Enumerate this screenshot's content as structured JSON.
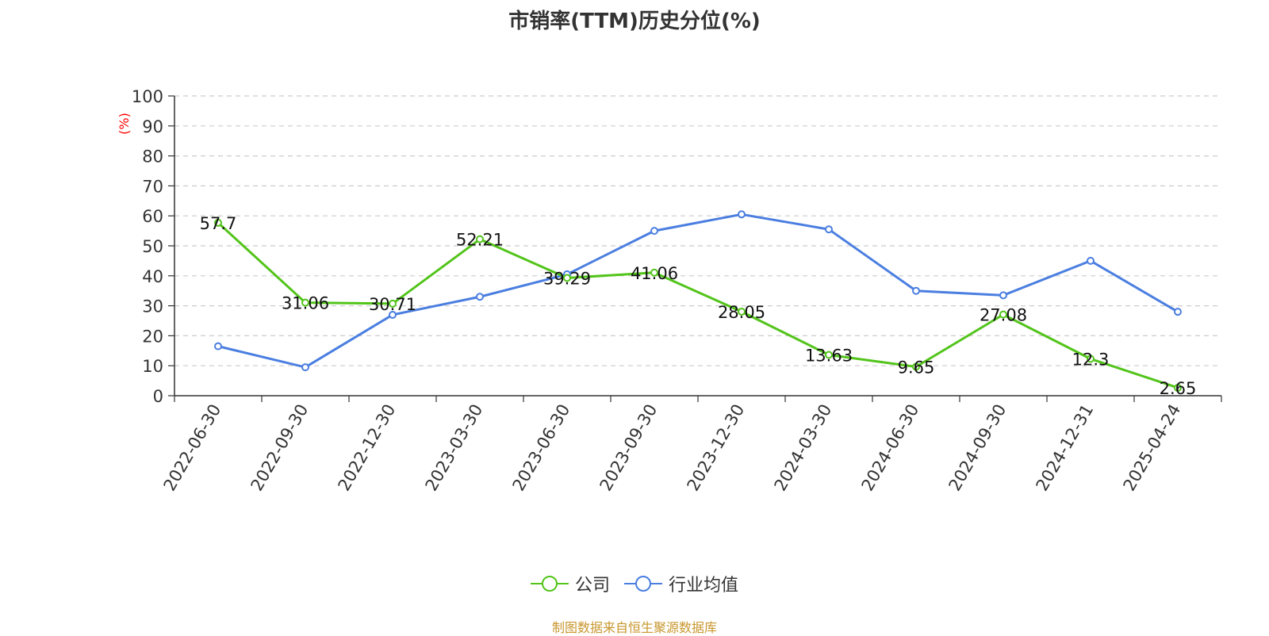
{
  "title": "市销率(TTM)历史分位(%)",
  "source_note": "制图数据来自恒生聚源数据库",
  "colors": {
    "company": "#52c41a",
    "industry": "#4a7ee0",
    "axis": "#333333",
    "grid": "#cccccc",
    "unit_label": "#ff0000",
    "source": "#c8962c"
  },
  "chart_data": {
    "type": "line",
    "title": "市销率(TTM)历史分位(%)",
    "ylabel": "(%)",
    "xlabel": "",
    "ylim": [
      0,
      100
    ],
    "yticks": [
      0,
      10,
      20,
      30,
      40,
      50,
      60,
      70,
      80,
      90,
      100
    ],
    "grid": true,
    "legend_position": "bottom-center",
    "x": [
      "2022-06-30",
      "2022-09-30",
      "2022-12-30",
      "2023-03-30",
      "2023-06-30",
      "2023-09-30",
      "2023-12-30",
      "2024-03-30",
      "2024-06-30",
      "2024-09-30",
      "2024-12-31",
      "2025-04-24"
    ],
    "series": [
      {
        "name": "公司",
        "values": [
          57.7,
          31.06,
          30.71,
          52.21,
          39.29,
          41.06,
          28.05,
          13.63,
          9.65,
          27.08,
          12.3,
          2.65
        ],
        "data_labels": [
          "57.7",
          "31.06",
          "30.71",
          "52.21",
          "39.29",
          "41.06",
          "28.05",
          "13.63",
          "9.65",
          "27.08",
          "12.3",
          "2.65"
        ]
      },
      {
        "name": "行业均值",
        "values": [
          16.5,
          9.5,
          27,
          33,
          40.5,
          55,
          60.5,
          55.5,
          35,
          33.5,
          45,
          28
        ]
      }
    ]
  }
}
